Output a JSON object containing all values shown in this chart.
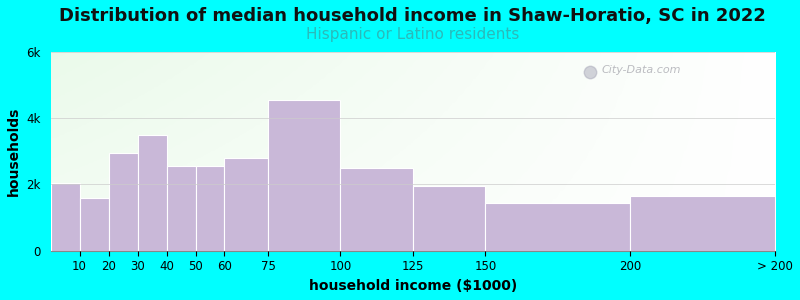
{
  "title": "Distribution of median household income in Shaw-Horatio, SC in 2022",
  "subtitle": "Hispanic or Latino residents",
  "xlabel": "household income ($1000)",
  "ylabel": "households",
  "background_color": "#00FFFF",
  "bar_color": "#C9B8D8",
  "bar_edge_color": "#ffffff",
  "bin_edges": [
    0,
    10,
    20,
    30,
    40,
    50,
    60,
    75,
    100,
    125,
    150,
    200,
    250
  ],
  "bin_labels": [
    "10",
    "20",
    "30",
    "40",
    "50",
    "60",
    "75",
    "100",
    "125",
    "150",
    "200",
    "> 200"
  ],
  "values": [
    2050,
    1600,
    2950,
    3500,
    2550,
    2550,
    2800,
    4550,
    2500,
    1950,
    1450,
    1650
  ],
  "ylim": [
    0,
    6000
  ],
  "yticks": [
    0,
    2000,
    4000,
    6000
  ],
  "ytick_labels": [
    "0",
    "2k",
    "4k",
    "6k"
  ],
  "title_fontsize": 13,
  "subtitle_fontsize": 11,
  "subtitle_color": "#2ababa",
  "axis_label_fontsize": 10,
  "tick_fontsize": 8.5,
  "watermark": "City-Data.com"
}
